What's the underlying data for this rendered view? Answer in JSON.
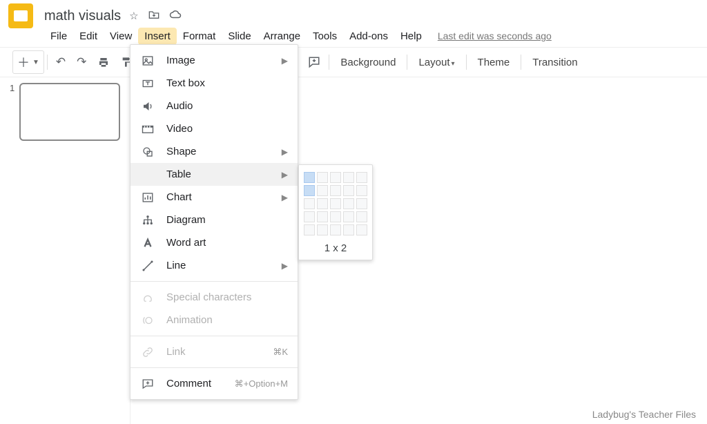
{
  "app": {
    "title": "math visuals"
  },
  "menubar": {
    "items": [
      "File",
      "Edit",
      "View",
      "Insert",
      "Format",
      "Slide",
      "Arrange",
      "Tools",
      "Add-ons",
      "Help"
    ],
    "activeIndex": 3,
    "editStatus": "Last edit was seconds ago"
  },
  "toolbar": {
    "background": "Background",
    "layout": "Layout",
    "theme": "Theme",
    "transition": "Transition"
  },
  "thumbnails": {
    "items": [
      {
        "number": "1"
      }
    ]
  },
  "insertMenu": {
    "items": [
      {
        "icon": "image",
        "label": "Image",
        "submenu": true
      },
      {
        "icon": "textbox",
        "label": "Text box"
      },
      {
        "icon": "audio",
        "label": "Audio"
      },
      {
        "icon": "video",
        "label": "Video"
      },
      {
        "icon": "shape",
        "label": "Shape",
        "submenu": true
      },
      {
        "icon": "table",
        "label": "Table",
        "submenu": true,
        "hovered": true
      },
      {
        "icon": "chart",
        "label": "Chart",
        "submenu": true
      },
      {
        "icon": "diagram",
        "label": "Diagram"
      },
      {
        "icon": "wordart",
        "label": "Word art"
      },
      {
        "icon": "line",
        "label": "Line",
        "submenu": true
      },
      {
        "divider": true
      },
      {
        "icon": "special",
        "label": "Special characters",
        "disabled": true
      },
      {
        "icon": "anim",
        "label": "Animation",
        "disabled": true
      },
      {
        "divider": true
      },
      {
        "icon": "link",
        "label": "Link",
        "shortcut": "⌘K",
        "disabled": true
      },
      {
        "divider": true
      },
      {
        "icon": "comment",
        "label": "Comment",
        "shortcut": "⌘+Option+M"
      }
    ]
  },
  "tableSubmenu": {
    "cols": 5,
    "rows": 5,
    "selCols": 1,
    "selRows": 2,
    "label": "1 x 2"
  },
  "watermark": "Ladybug's Teacher Files"
}
